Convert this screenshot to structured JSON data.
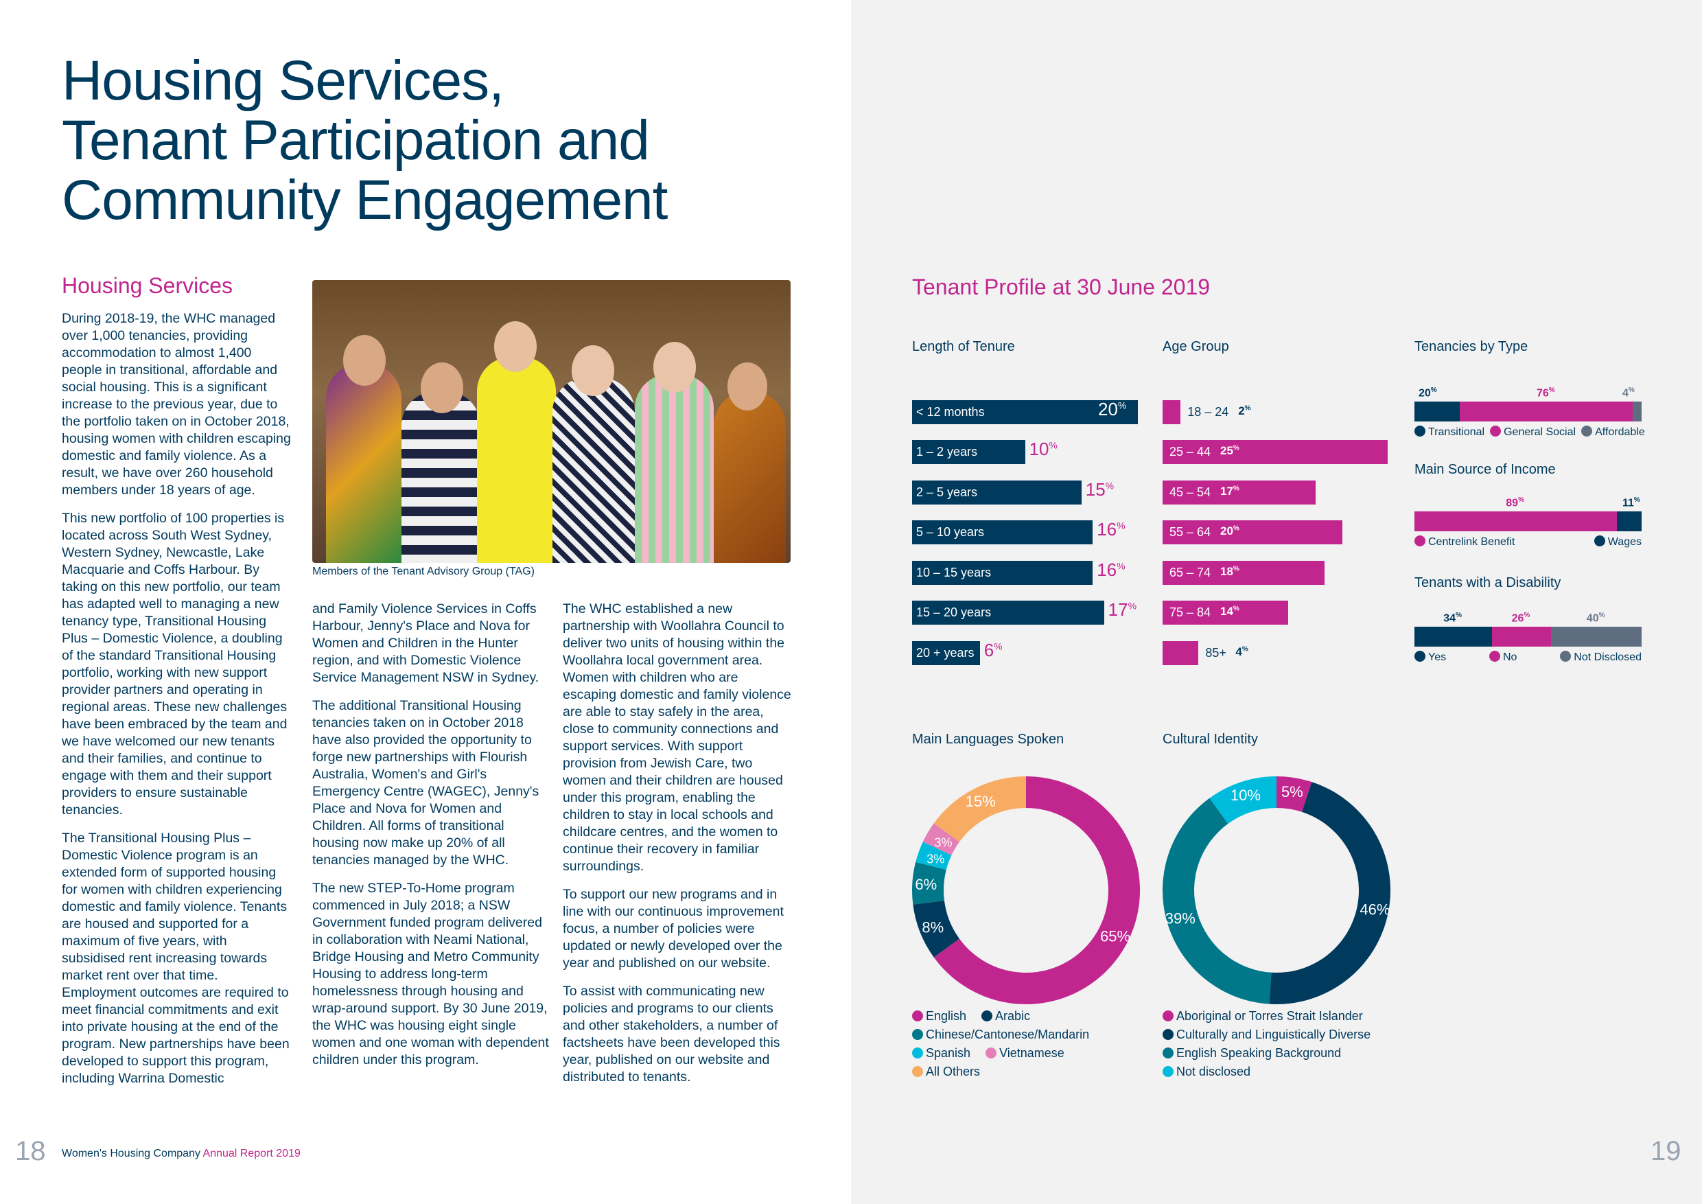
{
  "title_lines": [
    "Housing Services,",
    "Tenant Participation and",
    "Community Engagement"
  ],
  "housing_heading": "Housing Services",
  "col1": [
    "During 2018-19, the WHC managed over 1,000 tenancies, providing accommodation to almost 1,400 people in transitional, affordable and social housing.  This is a significant increase to the previous year, due to the portfolio taken on in October 2018, housing women with children escaping domestic and family violence. As a result, we have over 260 household members under 18 years of age.",
    "This new portfolio of 100 properties is located across South West Sydney, Western Sydney, Newcastle, Lake Macquarie and Coffs Harbour. By taking on this new portfolio, our team has adapted well to managing a new tenancy type, Transitional Housing Plus – Domestic Violence, a doubling of the standard Transitional Housing portfolio, working with new support provider partners and operating in regional areas.  These new challenges have been embraced by the team and we have welcomed our new tenants and their families, and continue to engage with them and their support providers to ensure sustainable tenancies.",
    "The Transitional Housing Plus – Domestic Violence program is an extended form of supported housing for women with children experiencing domestic and family violence. Tenants are housed and supported for a maximum of five years, with subsidised rent increasing towards market rent over that time. Employment outcomes are required to meet financial commitments and exit into private housing at the end of the program.  New partnerships have been developed to support this program, including Warrina Domestic"
  ],
  "col2": [
    "and Family Violence Services in Coffs Harbour, Jenny's Place and Nova for Women and Children in the Hunter region, and with Domestic Violence Service Management NSW in Sydney.",
    "The additional Transitional Housing tenancies taken on in October 2018 have also provided the opportunity to forge new partnerships with Flourish Australia, Women's and Girl's Emergency Centre (WAGEC), Jenny's Place and Nova for Women and Children.  All forms of transitional housing now make up 20% of all tenancies managed by the WHC.",
    "The new STEP-To-Home program commenced in July 2018; a NSW Government funded program delivered in collaboration with Neami National, Bridge Housing and Metro Community Housing to address long-term homelessness through housing and wrap-around support.  By 30 June 2019, the WHC was housing eight single women and one woman with dependent children under this program."
  ],
  "col3": [
    "The WHC established a new partnership with Woollahra Council to deliver two units of housing within the Woollahra local government area. Women with children who are escaping domestic and family violence are able to stay safely in the area, close to community connections and support services. With support provision from Jewish Care, two women and their children are housed under this program, enabling the children to stay in local schools and childcare centres, and the women to continue their recovery in familiar surroundings.",
    "To support our new programs and in line with our continuous improvement focus, a number of policies were updated or newly developed over the year and published on our website.",
    "To assist with communicating new policies and programs to our clients and other stakeholders, a number of factsheets have been developed this year, published on our website and distributed to tenants."
  ],
  "photo_caption": "Members of the Tenant Advisory Group (TAG)",
  "footer": {
    "page_left": "18",
    "org": "Women's Housing Company",
    "report": "Annual Report 2019",
    "page_right": "19"
  },
  "colors": {
    "navy": "#003a5d",
    "magenta": "#c1268f",
    "teal": "#00788a",
    "cyan": "#00bcdc",
    "pink": "#e57fb8",
    "orange": "#f8ab62",
    "gray": "#5e6e80"
  },
  "profile_heading": "Tenant Profile at 30 June 2019",
  "chart_data": [
    {
      "type": "bar",
      "title": "Length of Tenure",
      "unit": "%",
      "categories": [
        "< 12 months",
        "1 – 2 years",
        "2 – 5 years",
        "5 – 10 years",
        "10 – 15 years",
        "15 – 20 years",
        "20 + years"
      ],
      "values": [
        20,
        10,
        15,
        16,
        16,
        17,
        6
      ]
    },
    {
      "type": "bar",
      "title": "Age Group",
      "unit": "%",
      "categories": [
        "18 – 24",
        "25 – 44",
        "45 – 54",
        "55 – 64",
        "65 – 74",
        "75 – 84",
        "85+"
      ],
      "values": [
        2,
        25,
        17,
        20,
        18,
        14,
        4
      ]
    },
    {
      "type": "stacked-bar",
      "title": "Tenancies by Type",
      "unit": "%",
      "categories": [
        "Transitional",
        "General Social",
        "Affordable"
      ],
      "values": [
        20,
        76,
        4
      ],
      "colors": [
        "#003a5d",
        "#c1268f",
        "#5e6e80"
      ]
    },
    {
      "type": "stacked-bar",
      "title": "Main Source of Income",
      "unit": "%",
      "categories": [
        "Centrelink Benefit",
        "Wages"
      ],
      "values": [
        89,
        11
      ],
      "colors": [
        "#c1268f",
        "#003a5d"
      ]
    },
    {
      "type": "stacked-bar",
      "title": "Tenants with a Disability",
      "unit": "%",
      "categories": [
        "Yes",
        "No",
        "Not Disclosed"
      ],
      "values": [
        34,
        26,
        40
      ],
      "colors": [
        "#003a5d",
        "#c1268f",
        "#5e6e80"
      ]
    },
    {
      "type": "pie",
      "title": "Main Languages Spoken",
      "unit": "%",
      "categories": [
        "English",
        "Arabic",
        "Chinese/Cantonese/Mandarin",
        "Spanish",
        "Vietnamese",
        "All Others"
      ],
      "values": [
        65,
        8,
        6,
        3,
        3,
        15
      ],
      "colors": [
        "#c1268f",
        "#003a5d",
        "#00788a",
        "#00bcdc",
        "#e57fb8",
        "#f8ab62"
      ],
      "legend_rows": [
        [
          0,
          1
        ],
        [
          2
        ],
        [
          3,
          4
        ],
        [
          5
        ]
      ]
    },
    {
      "type": "pie",
      "title": "Cultural Identity",
      "unit": "%",
      "categories": [
        "Aboriginal or Torres Strait Islander",
        "Culturally and Linguistically Diverse",
        "English Speaking Background",
        "Not disclosed"
      ],
      "values": [
        5,
        46,
        39,
        10
      ],
      "colors": [
        "#c1268f",
        "#003a5d",
        "#00788a",
        "#00bcdc"
      ],
      "legend_rows": [
        [
          0
        ],
        [
          1
        ],
        [
          2
        ],
        [
          3
        ]
      ]
    }
  ]
}
